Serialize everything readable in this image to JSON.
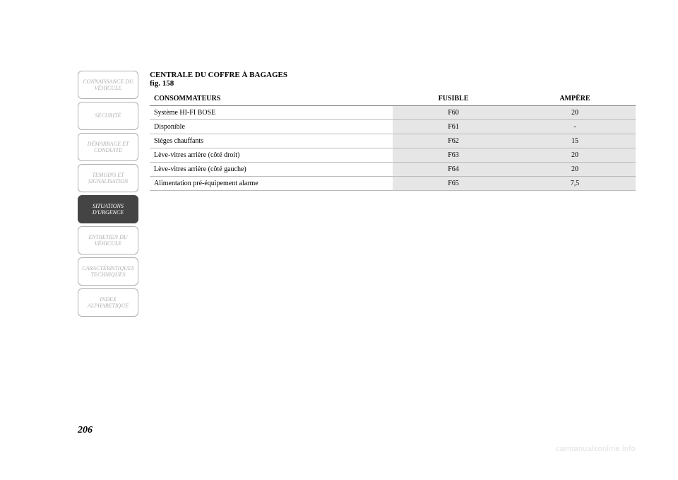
{
  "sidebar": {
    "items": [
      {
        "label": "CONNAISSANCE DU VÉHICULE",
        "active": false
      },
      {
        "label": "SÉCURITÉ",
        "active": false
      },
      {
        "label": "DÉMARRAGE ET CONDUITE",
        "active": false
      },
      {
        "label": "TEMOINS ET SIGNALISATION",
        "active": false
      },
      {
        "label": "SITUATIONS D'URGENCE",
        "active": true
      },
      {
        "label": "ENTRETIEN DU VÉHICULE",
        "active": false
      },
      {
        "label": "CARACTÉRISTIQUES TECHNIQUES",
        "active": false
      },
      {
        "label": "INDEX ALPHABETIQUE",
        "active": false
      }
    ]
  },
  "main": {
    "section_title": "CENTRALE DU COFFRE À BAGAGES",
    "fig_ref": "fig. 158",
    "table": {
      "columns": [
        "CONSOMMATEURS",
        "FUSIBLE",
        "AMPÈRE"
      ],
      "rows": [
        [
          "Système HI-FI BOSE",
          "F60",
          "20"
        ],
        [
          "Disponible",
          "F61",
          "-"
        ],
        [
          "Sièges chauffants",
          "F62",
          "15"
        ],
        [
          "Lève-vitres arrière (côté droit)",
          "F63",
          "20"
        ],
        [
          "Lève-vitres arrière (côté gauche)",
          "F64",
          "20"
        ],
        [
          "Alimentation pré-équipement alarme",
          "F65",
          "7,5"
        ]
      ],
      "header_bg": "#ffffff",
      "data_bg": "#e6e6e6",
      "border_color": "#bbbbbb",
      "font_size": 10
    },
    "page_number": "206",
    "watermark": "carmanualsonline.info"
  },
  "colors": {
    "sidebar_border": "#b0b0b0",
    "sidebar_text": "#b0b0b0",
    "sidebar_active_bg": "#444444",
    "sidebar_active_text": "#ffffff",
    "page_bg": "#ffffff"
  }
}
